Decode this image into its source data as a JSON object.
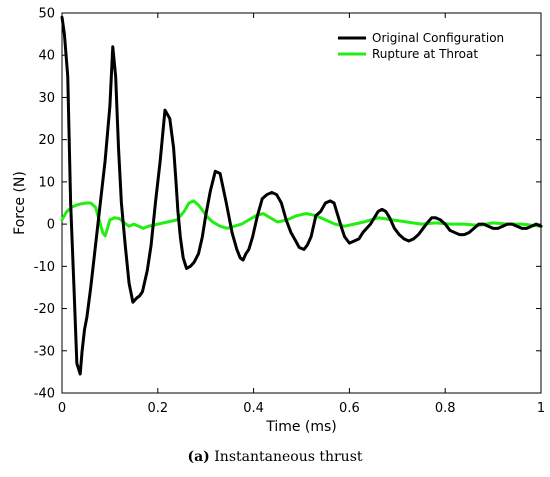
{
  "chart_data": {
    "type": "line",
    "xlabel": "Time (ms)",
    "ylabel": "Force (N)",
    "xlim": [
      0,
      1
    ],
    "ylim": [
      -40,
      50
    ],
    "xticks": [
      0,
      0.2,
      0.4,
      0.6,
      0.8,
      1
    ],
    "xtick_labels": [
      "0",
      "0.2",
      "0.4",
      "0.6",
      "0.8",
      "1"
    ],
    "yticks": [
      -40,
      -30,
      -20,
      -10,
      0,
      10,
      20,
      30,
      40,
      50
    ],
    "ytick_labels": [
      "-40",
      "-30",
      "-20",
      "-10",
      "0",
      "10",
      "20",
      "30",
      "40",
      "50"
    ],
    "grid": false,
    "legend_position": "top-right",
    "series": [
      {
        "name": "Original Configuration",
        "color": "#000000",
        "x": [
          0,
          0.005,
          0.012,
          0.018,
          0.025,
          0.031,
          0.038,
          0.042,
          0.047,
          0.052,
          0.06,
          0.07,
          0.08,
          0.09,
          0.1,
          0.106,
          0.112,
          0.118,
          0.124,
          0.132,
          0.14,
          0.148,
          0.156,
          0.162,
          0.168,
          0.172,
          0.178,
          0.186,
          0.195,
          0.205,
          0.215,
          0.225,
          0.233,
          0.238,
          0.242,
          0.247,
          0.253,
          0.26,
          0.268,
          0.276,
          0.285,
          0.293,
          0.3,
          0.31,
          0.32,
          0.33,
          0.343,
          0.355,
          0.365,
          0.372,
          0.378,
          0.384,
          0.39,
          0.398,
          0.408,
          0.418,
          0.428,
          0.438,
          0.448,
          0.458,
          0.468,
          0.478,
          0.488,
          0.495,
          0.505,
          0.512,
          0.52,
          0.53,
          0.54,
          0.55,
          0.56,
          0.568,
          0.576,
          0.584,
          0.59,
          0.6,
          0.61,
          0.62,
          0.628,
          0.636,
          0.644,
          0.652,
          0.66,
          0.668,
          0.676,
          0.684,
          0.694,
          0.704,
          0.714,
          0.724,
          0.734,
          0.744,
          0.754,
          0.764,
          0.772,
          0.78,
          0.79,
          0.8,
          0.81,
          0.82,
          0.83,
          0.84,
          0.85,
          0.86,
          0.87,
          0.88,
          0.89,
          0.9,
          0.91,
          0.92,
          0.93,
          0.94,
          0.95,
          0.96,
          0.97,
          0.98,
          0.99,
          1.0
        ],
        "y": [
          49,
          45,
          35,
          5,
          -15,
          -33,
          -35.5,
          -30,
          -25,
          -22,
          -15,
          -5,
          5,
          15,
          28,
          42,
          35,
          18,
          5,
          -5,
          -14,
          -18.5,
          -17.5,
          -17,
          -16,
          -14,
          -11,
          -5,
          5,
          15,
          27,
          25,
          18,
          10,
          3,
          -3,
          -8,
          -10.5,
          -10,
          -9,
          -7,
          -3,
          2,
          8,
          12.5,
          12,
          5,
          -2,
          -6,
          -8,
          -8.5,
          -7,
          -6,
          -3,
          2,
          6,
          7,
          7.5,
          7,
          5,
          1,
          -2,
          -4,
          -5.5,
          -6,
          -5,
          -3,
          2,
          3,
          5,
          5.5,
          5,
          2,
          -1,
          -3,
          -4.5,
          -4,
          -3.5,
          -2,
          -1,
          0,
          1.5,
          3,
          3.5,
          3,
          1.5,
          -1,
          -2.5,
          -3.5,
          -4,
          -3.5,
          -2.5,
          -1,
          0.5,
          1.5,
          1.5,
          1,
          0,
          -1.5,
          -2,
          -2.5,
          -2.5,
          -2,
          -1,
          0,
          0,
          -0.5,
          -1,
          -1,
          -0.5,
          0,
          0,
          -0.5,
          -1,
          -1,
          -0.5,
          0,
          -0.5
        ]
      },
      {
        "name": "Rupture at Throat",
        "color": "#22ee11",
        "x": [
          0,
          0.01,
          0.02,
          0.03,
          0.04,
          0.05,
          0.06,
          0.07,
          0.08,
          0.085,
          0.09,
          0.095,
          0.1,
          0.11,
          0.12,
          0.13,
          0.14,
          0.15,
          0.16,
          0.17,
          0.18,
          0.19,
          0.2,
          0.22,
          0.24,
          0.255,
          0.265,
          0.275,
          0.285,
          0.295,
          0.305,
          0.315,
          0.33,
          0.345,
          0.36,
          0.375,
          0.39,
          0.405,
          0.42,
          0.435,
          0.45,
          0.47,
          0.49,
          0.51,
          0.53,
          0.55,
          0.57,
          0.59,
          0.61,
          0.63,
          0.66,
          0.69,
          0.72,
          0.75,
          0.78,
          0.81,
          0.84,
          0.87,
          0.9,
          0.93,
          0.96,
          1.0
        ],
        "y": [
          1,
          3,
          4,
          4.5,
          4.8,
          5,
          5,
          4,
          0,
          -2,
          -2.8,
          -1,
          1,
          1.5,
          1.3,
          0.3,
          -0.5,
          0,
          -0.5,
          -1,
          -0.5,
          -0.3,
          0,
          0.5,
          1,
          3,
          5,
          5.5,
          4.5,
          3,
          1.5,
          0.5,
          -0.5,
          -1,
          -0.5,
          0,
          1,
          2,
          2.5,
          1.5,
          0.5,
          1,
          2,
          2.5,
          2,
          1,
          0,
          -0.5,
          0,
          0.5,
          1.5,
          1,
          0.5,
          0,
          0.3,
          0,
          0,
          -0.3,
          0.3,
          0,
          0,
          -0.5
        ]
      }
    ]
  },
  "caption": {
    "label": "(a)",
    "text": "Instantaneous thrust"
  }
}
